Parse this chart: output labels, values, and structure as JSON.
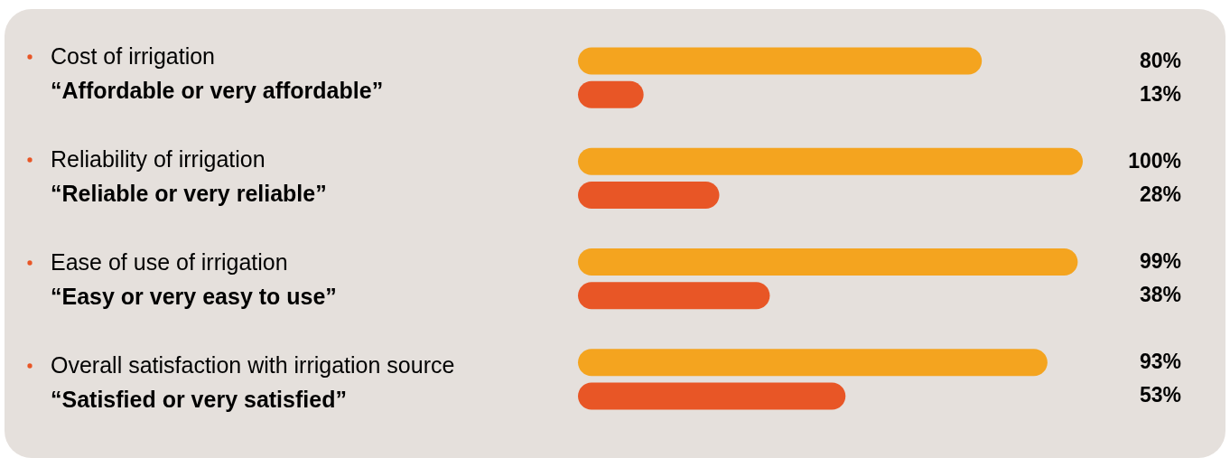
{
  "chart_data": {
    "type": "bar",
    "orientation": "horizontal",
    "categories": [
      "Cost of irrigation",
      "“Affordable or very affordable”",
      "Reliability of irrigation",
      "“Reliable or very reliable”",
      "Ease of use of irrigation",
      "“Easy or very easy to use”",
      "Overall satisfaction with irrigation source",
      "“Satisfied or very satisfied”"
    ],
    "values": [
      80,
      13,
      100,
      28,
      99,
      38,
      93,
      53
    ],
    "colors": [
      "#f4a41f",
      "#e85626",
      "#f4a41f",
      "#e85626",
      "#f4a41f",
      "#e85626",
      "#f4a41f",
      "#e85626"
    ],
    "value_labels": [
      "80%",
      "13%",
      "100%",
      "28%",
      "99%",
      "38%",
      "93%",
      "53%"
    ]
  }
}
